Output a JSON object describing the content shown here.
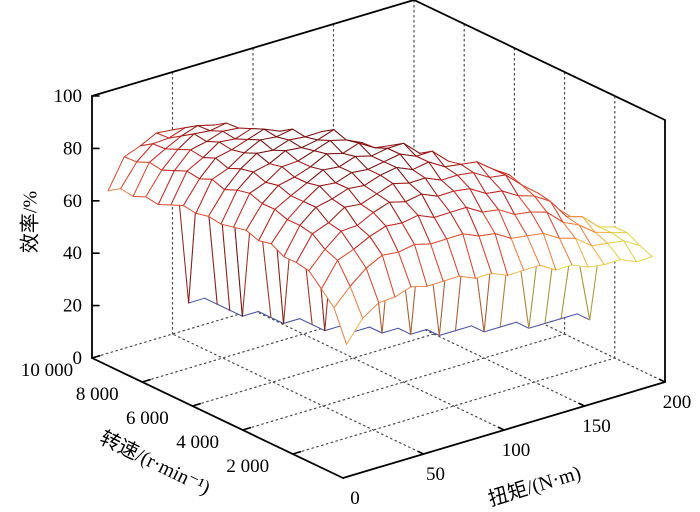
{
  "figure": {
    "z_axis_title": "效率/%",
    "speed_axis_title": "转速/(r·min⁻¹)",
    "torque_axis_title": "扭矩/(N·m)"
  },
  "chart_data": {
    "type": "mesh",
    "title": "",
    "xlabel": "扭矩/(N·m)",
    "ylabel": "转速/(r·min⁻¹)",
    "zlabel": "效率/%",
    "x_torque": {
      "min": 0,
      "max": 200,
      "ticks": [
        0,
        50,
        100,
        150,
        200
      ],
      "tick_labels": [
        "0",
        "50",
        "100",
        "150",
        "200"
      ]
    },
    "y_speed": {
      "min": 0,
      "max": 10000,
      "ticks": [
        2000,
        4000,
        6000,
        8000,
        10000
      ],
      "tick_labels": [
        "2 000",
        "4 000",
        "6 000",
        "8 000",
        "10 000"
      ]
    },
    "z_efficiency": {
      "min": 0,
      "max": 100,
      "ticks": [
        0,
        20,
        40,
        60,
        80,
        100
      ],
      "tick_labels": [
        "0",
        "20",
        "40",
        "60",
        "80",
        "100"
      ]
    },
    "grid_on": true,
    "legend": null,
    "surface": {
      "torque_values": [
        10,
        20,
        30,
        40,
        50,
        60,
        70,
        80,
        90,
        100,
        110,
        120,
        130,
        140,
        150,
        160,
        170,
        180,
        190,
        200
      ],
      "speed_values": [
        500,
        1000,
        1500,
        2000,
        2500,
        3000,
        3500,
        4000,
        4500,
        5000,
        5500,
        6000,
        6500,
        7000,
        7500,
        8000,
        8500,
        9000,
        9500,
        10000
      ],
      "floor_efficiency": 10,
      "efficiency": [
        [
          48,
          58,
          64,
          67,
          69,
          70,
          71,
          71,
          71,
          71,
          71,
          70,
          70,
          69,
          68,
          67,
          66,
          65,
          64,
          62
        ],
        [
          55,
          66,
          72,
          75,
          77,
          79,
          80,
          80,
          81,
          81,
          81,
          80,
          80,
          79,
          78,
          77,
          76,
          75,
          74,
          72
        ],
        [
          58,
          70,
          76,
          79,
          81,
          83,
          84,
          85,
          85,
          85,
          85,
          85,
          84,
          84,
          83,
          82,
          81,
          80,
          78,
          76
        ],
        [
          60,
          72,
          78,
          81,
          84,
          86,
          87,
          87,
          88,
          88,
          88,
          88,
          87,
          87,
          86,
          85,
          84,
          82,
          80,
          78
        ],
        [
          61,
          73,
          79,
          83,
          85,
          87,
          88,
          89,
          89,
          90,
          90,
          89,
          89,
          88,
          87,
          86,
          85,
          83,
          81,
          79
        ],
        [
          61,
          73,
          80,
          84,
          86,
          88,
          89,
          90,
          91,
          91,
          91,
          90,
          90,
          89,
          88,
          87,
          85,
          83,
          76,
          10
        ],
        [
          60,
          73,
          80,
          84,
          87,
          89,
          90,
          91,
          91,
          92,
          91,
          91,
          90,
          88,
          82,
          68,
          10,
          10,
          10,
          10
        ],
        [
          59,
          72,
          79,
          84,
          87,
          89,
          90,
          91,
          92,
          92,
          92,
          90,
          84,
          68,
          10,
          10,
          10,
          10,
          10,
          10
        ],
        [
          58,
          71,
          78,
          83,
          86,
          88,
          90,
          91,
          90,
          88,
          80,
          66,
          10,
          10,
          10,
          10,
          10,
          10,
          10,
          10
        ],
        [
          57,
          70,
          77,
          82,
          85,
          88,
          89,
          90,
          88,
          80,
          65,
          10,
          10,
          10,
          10,
          10,
          10,
          10,
          10,
          10
        ],
        [
          56,
          68,
          75,
          80,
          84,
          86,
          88,
          86,
          80,
          64,
          10,
          10,
          10,
          10,
          10,
          10,
          10,
          10,
          10,
          10
        ],
        [
          55,
          66,
          73,
          78,
          82,
          84,
          84,
          78,
          63,
          10,
          10,
          10,
          10,
          10,
          10,
          10,
          10,
          10,
          10,
          10
        ],
        [
          54,
          64,
          71,
          76,
          80,
          82,
          78,
          62,
          10,
          10,
          10,
          10,
          10,
          10,
          10,
          10,
          10,
          10,
          10,
          10
        ],
        [
          52,
          62,
          69,
          74,
          78,
          79,
          74,
          60,
          10,
          10,
          10,
          10,
          10,
          10,
          10,
          10,
          10,
          10,
          10,
          10
        ],
        [
          51,
          60,
          66,
          71,
          74,
          74,
          62,
          10,
          10,
          10,
          10,
          10,
          10,
          10,
          10,
          10,
          10,
          10,
          10,
          10
        ],
        [
          50,
          57,
          62,
          66,
          68,
          66,
          56,
          10,
          10,
          10,
          10,
          10,
          10,
          10,
          10,
          10,
          10,
          10,
          10,
          10
        ],
        [
          48,
          54,
          58,
          60,
          60,
          52,
          10,
          10,
          10,
          10,
          10,
          10,
          10,
          10,
          10,
          10,
          10,
          10,
          10,
          10
        ],
        [
          47,
          52,
          55,
          57,
          56,
          49,
          10,
          10,
          10,
          10,
          10,
          10,
          10,
          10,
          10,
          10,
          10,
          10,
          10,
          10
        ],
        [
          46,
          50,
          52,
          53,
          52,
          46,
          10,
          10,
          10,
          10,
          10,
          10,
          10,
          10,
          10,
          10,
          10,
          10,
          10,
          10
        ],
        [
          45,
          48,
          49,
          50,
          48,
          10,
          10,
          10,
          10,
          10,
          10,
          10,
          10,
          10,
          10,
          10,
          10,
          10,
          10,
          10
        ]
      ]
    },
    "colors": {
      "background": "#ffffff",
      "box_line": "#000000",
      "grid_dotted": "#4a4a4a",
      "face_fill": "#ffffff",
      "edge_ramp": [
        [
          20,
          "#4A55A8"
        ],
        [
          45,
          "#C9D44E"
        ],
        [
          52,
          "#E4D24E"
        ],
        [
          58,
          "#F0B44C"
        ],
        [
          66,
          "#ED8446"
        ],
        [
          76,
          "#DC4A30"
        ],
        [
          84,
          "#C12822"
        ],
        [
          89,
          "#9C1A16"
        ],
        [
          101,
          "#7E1210"
        ]
      ]
    }
  }
}
